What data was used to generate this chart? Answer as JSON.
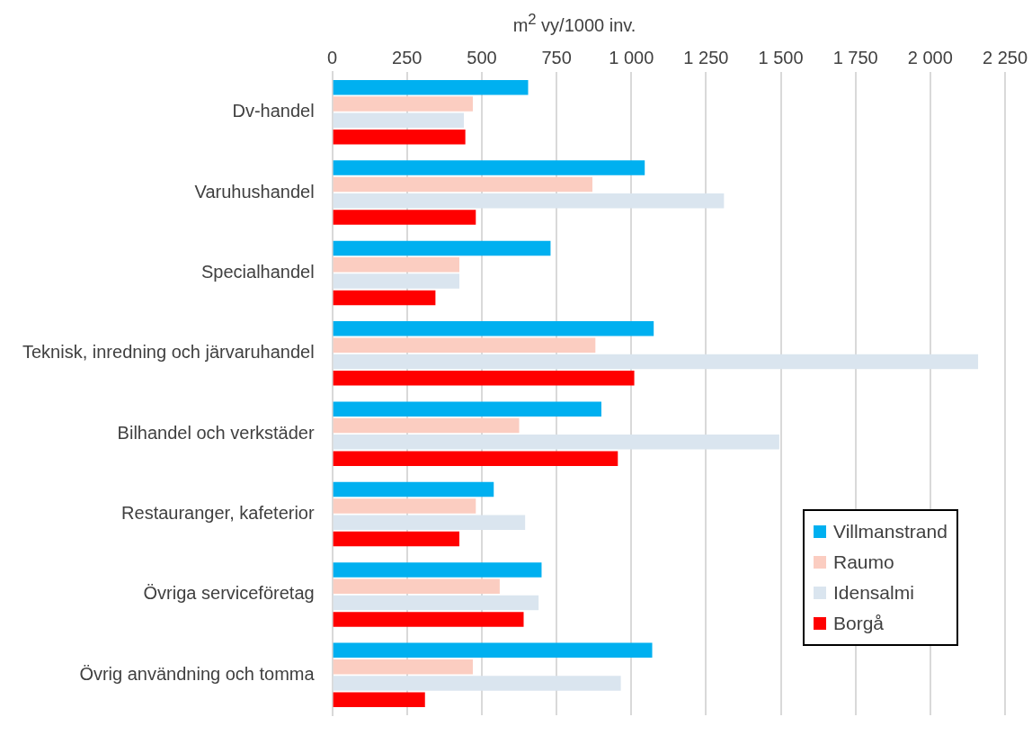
{
  "chart_data": {
    "type": "bar",
    "orientation": "horizontal",
    "xlabel": "m$^{2}$ vy/1000 inv.",
    "categories": [
      "Dv-handel",
      "Varuhushandel",
      "Specialhandel",
      "Teknisk, inredning och järvaruhandel",
      "Bilhandel och verkstäder",
      "Restauranger, kafeterior",
      "Övriga serviceföretag",
      "Övrig användning och tomma"
    ],
    "series": [
      {
        "name": "Villmanstrand",
        "color": "#00b0f0",
        "values": [
          655,
          1045,
          730,
          1075,
          900,
          540,
          700,
          1070
        ]
      },
      {
        "name": "Raumo",
        "color": "#fbcdc1",
        "values": [
          470,
          870,
          425,
          880,
          625,
          480,
          560,
          470
        ]
      },
      {
        "name": "Idensalmi",
        "color": "#dae5ef",
        "values": [
          440,
          1310,
          425,
          2160,
          1495,
          645,
          690,
          965
        ]
      },
      {
        "name": "Borgå",
        "color": "#ff0000",
        "values": [
          445,
          480,
          345,
          1010,
          955,
          425,
          640,
          310
        ]
      }
    ],
    "xlim": [
      0,
      2250
    ],
    "xticks": [
      0,
      250,
      500,
      750,
      {
        "value": 1000,
        "label": "1 000"
      },
      {
        "value": 1250,
        "label": "1 250"
      },
      {
        "value": 1500,
        "label": "1 500"
      },
      {
        "value": 1750,
        "label": "1 750"
      },
      {
        "value": 2000,
        "label": "2 000"
      },
      {
        "value": 2250,
        "label": "2 250"
      }
    ],
    "grid": "x",
    "legend": "right"
  }
}
